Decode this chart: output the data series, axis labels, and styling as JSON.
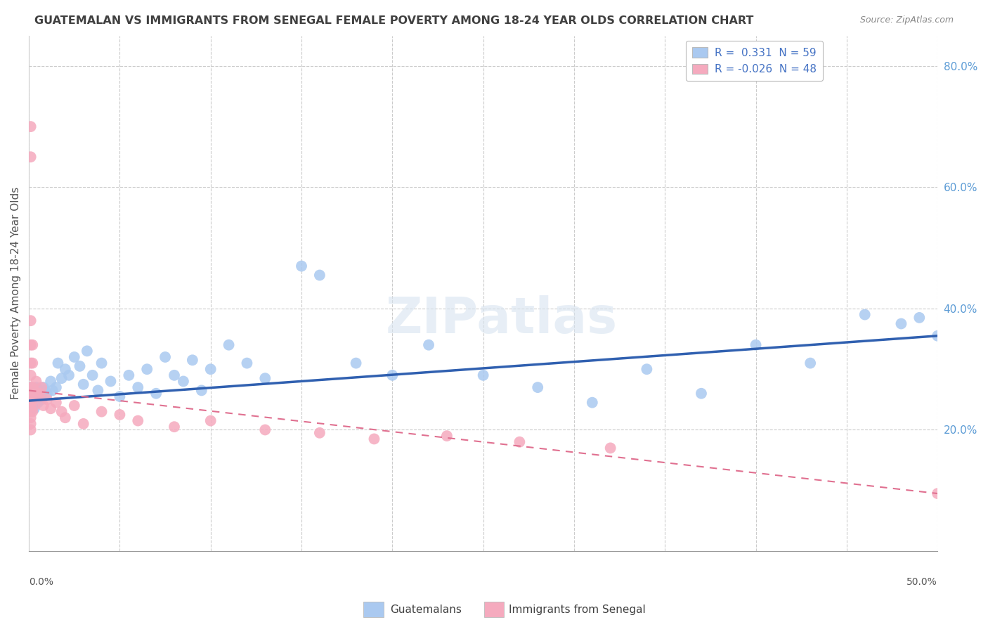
{
  "title": "GUATEMALAN VS IMMIGRANTS FROM SENEGAL FEMALE POVERTY AMONG 18-24 YEAR OLDS CORRELATION CHART",
  "source": "Source: ZipAtlas.com",
  "ylabel": "Female Poverty Among 18-24 Year Olds",
  "legend_r1": "R =  0.331  N = 59",
  "legend_r2": "R = -0.026  N = 48",
  "guatemalan_color": "#aac9f0",
  "senegal_color": "#f5aabe",
  "trend_guatemalan_color": "#3060b0",
  "trend_senegal_color": "#e07090",
  "background_color": "#ffffff",
  "watermark": "ZIPatlas",
  "xlim": [
    0.0,
    0.5
  ],
  "ylim": [
    0.0,
    0.85
  ],
  "yticks": [
    0.2,
    0.4,
    0.6,
    0.8
  ],
  "ytick_labels": [
    "20.0%",
    "40.0%",
    "60.0%",
    "80.0%"
  ],
  "guatemalans_x": [
    0.001,
    0.001,
    0.002,
    0.002,
    0.003,
    0.003,
    0.004,
    0.005,
    0.005,
    0.006,
    0.007,
    0.008,
    0.009,
    0.01,
    0.012,
    0.013,
    0.015,
    0.016,
    0.018,
    0.02,
    0.022,
    0.025,
    0.028,
    0.03,
    0.032,
    0.035,
    0.038,
    0.04,
    0.045,
    0.05,
    0.055,
    0.06,
    0.065,
    0.07,
    0.075,
    0.08,
    0.085,
    0.09,
    0.095,
    0.1,
    0.11,
    0.12,
    0.13,
    0.15,
    0.16,
    0.18,
    0.2,
    0.22,
    0.25,
    0.28,
    0.31,
    0.34,
    0.37,
    0.4,
    0.43,
    0.46,
    0.48,
    0.49,
    0.5
  ],
  "guatemalans_y": [
    0.27,
    0.25,
    0.26,
    0.24,
    0.255,
    0.235,
    0.27,
    0.26,
    0.245,
    0.265,
    0.25,
    0.27,
    0.265,
    0.26,
    0.28,
    0.265,
    0.27,
    0.31,
    0.285,
    0.3,
    0.29,
    0.32,
    0.305,
    0.275,
    0.33,
    0.29,
    0.265,
    0.31,
    0.28,
    0.255,
    0.29,
    0.27,
    0.3,
    0.26,
    0.32,
    0.29,
    0.28,
    0.315,
    0.265,
    0.3,
    0.34,
    0.31,
    0.285,
    0.47,
    0.455,
    0.31,
    0.29,
    0.34,
    0.29,
    0.27,
    0.245,
    0.3,
    0.26,
    0.34,
    0.31,
    0.39,
    0.375,
    0.385,
    0.355
  ],
  "senegal_x": [
    0.001,
    0.001,
    0.001,
    0.001,
    0.001,
    0.001,
    0.001,
    0.001,
    0.001,
    0.001,
    0.001,
    0.001,
    0.001,
    0.001,
    0.001,
    0.001,
    0.001,
    0.002,
    0.002,
    0.002,
    0.002,
    0.002,
    0.003,
    0.003,
    0.004,
    0.005,
    0.006,
    0.007,
    0.008,
    0.01,
    0.012,
    0.015,
    0.018,
    0.02,
    0.025,
    0.03,
    0.04,
    0.05,
    0.06,
    0.08,
    0.1,
    0.13,
    0.16,
    0.19,
    0.23,
    0.27,
    0.32,
    0.5
  ],
  "senegal_y": [
    0.7,
    0.65,
    0.38,
    0.34,
    0.31,
    0.29,
    0.27,
    0.26,
    0.25,
    0.24,
    0.23,
    0.22,
    0.21,
    0.2,
    0.265,
    0.255,
    0.245,
    0.34,
    0.31,
    0.27,
    0.25,
    0.23,
    0.265,
    0.24,
    0.28,
    0.255,
    0.26,
    0.27,
    0.24,
    0.25,
    0.235,
    0.245,
    0.23,
    0.22,
    0.24,
    0.21,
    0.23,
    0.225,
    0.215,
    0.205,
    0.215,
    0.2,
    0.195,
    0.185,
    0.19,
    0.18,
    0.17,
    0.095
  ]
}
